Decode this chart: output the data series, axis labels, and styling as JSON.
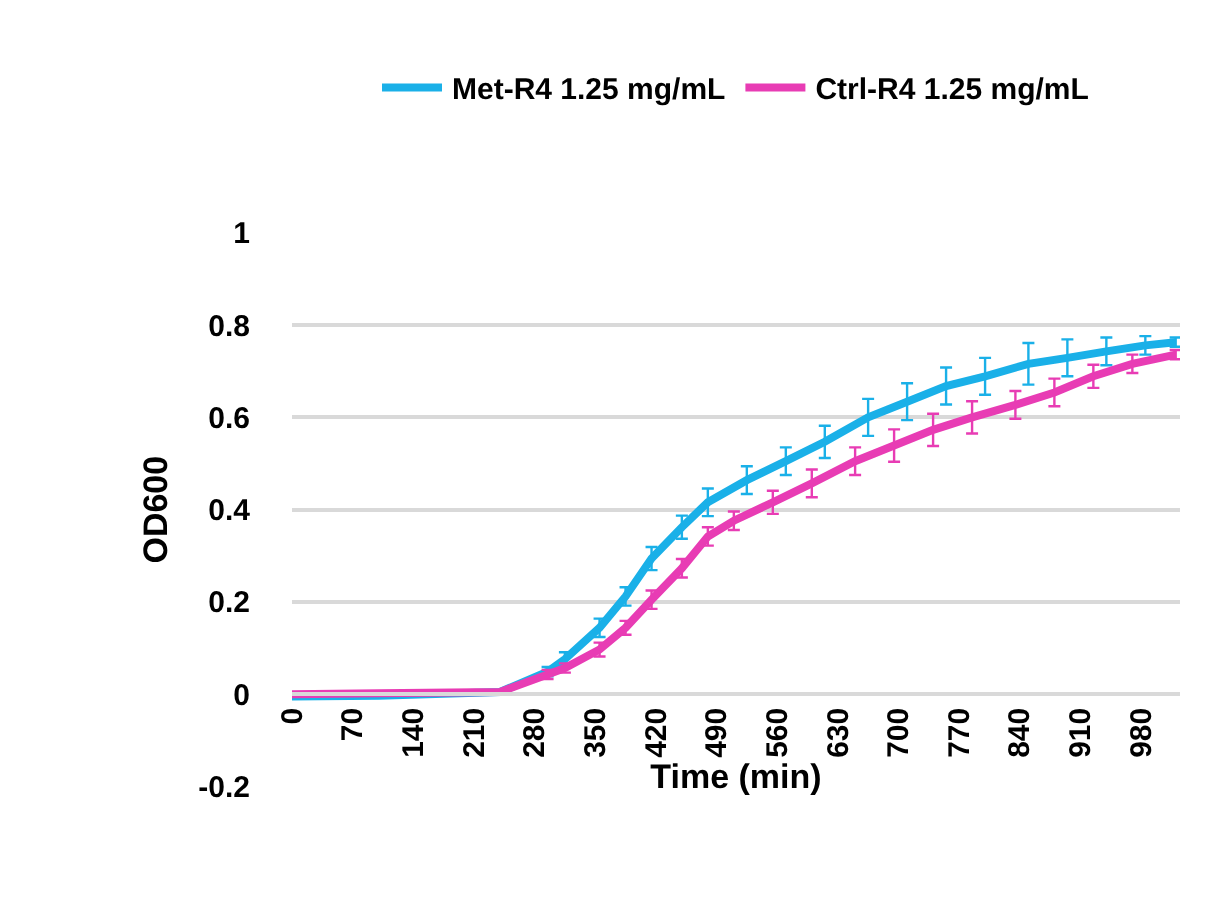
{
  "chart_data": {
    "type": "line",
    "xlabel": "Time (min)",
    "ylabel": "OD600",
    "xlim": [
      0,
      1025
    ],
    "xticks": [
      0,
      70,
      140,
      210,
      280,
      350,
      420,
      490,
      560,
      630,
      700,
      770,
      840,
      910,
      980
    ],
    "ylim": [
      -0.2,
      1
    ],
    "yticks": [
      -0.2,
      0,
      0.2,
      0.4,
      0.6,
      0.8,
      1
    ],
    "grid": "y",
    "legend": "top",
    "line_style": "solid",
    "series": [
      {
        "name": "Met-R4 1.25 mg/mL",
        "color": "#1ab0e8",
        "x": [
          0,
          100,
          240,
          295,
          315,
          355,
          385,
          415,
          450,
          480,
          525,
          570,
          615,
          665,
          710,
          755,
          800,
          850,
          895,
          940,
          985,
          1020
        ],
        "values": [
          -0.005,
          -0.003,
          0.005,
          0.049,
          0.076,
          0.144,
          0.212,
          0.294,
          0.362,
          0.416,
          0.464,
          0.505,
          0.547,
          0.6,
          0.634,
          0.668,
          0.689,
          0.716,
          0.729,
          0.743,
          0.756,
          0.763
        ],
        "errors": [
          null,
          null,
          null,
          0.01,
          0.015,
          0.02,
          0.02,
          0.025,
          0.025,
          0.03,
          0.03,
          0.03,
          0.035,
          0.04,
          0.04,
          0.04,
          0.04,
          0.045,
          0.04,
          0.03,
          0.02,
          0.01
        ]
      },
      {
        "name": "Ctrl-R4 1.25 mg/mL",
        "color": "#e83cb4",
        "x": [
          0,
          100,
          240,
          295,
          315,
          355,
          385,
          415,
          450,
          480,
          510,
          555,
          600,
          650,
          695,
          740,
          785,
          835,
          880,
          925,
          970,
          1020
        ],
        "values": [
          0,
          0.002,
          0.005,
          0.043,
          0.057,
          0.097,
          0.144,
          0.205,
          0.273,
          0.342,
          0.376,
          0.416,
          0.457,
          0.505,
          0.539,
          0.573,
          0.6,
          0.627,
          0.654,
          0.689,
          0.716,
          0.736
        ],
        "errors": [
          null,
          null,
          null,
          0.01,
          0.01,
          0.015,
          0.015,
          0.02,
          0.02,
          0.02,
          0.02,
          0.025,
          0.03,
          0.03,
          0.035,
          0.035,
          0.035,
          0.03,
          0.03,
          0.025,
          0.02,
          0.01
        ]
      }
    ]
  }
}
